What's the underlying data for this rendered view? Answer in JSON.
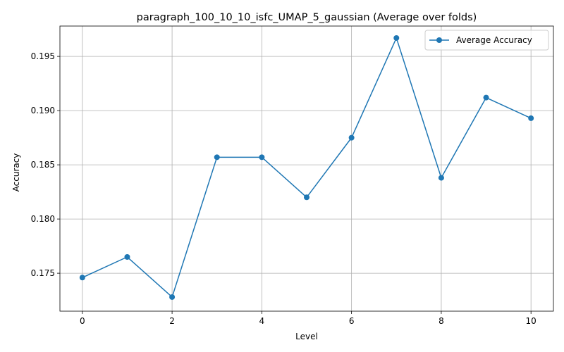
{
  "chart_data": {
    "type": "line",
    "title": "paragraph_100_10_10_isfc_UMAP_5_gaussian (Average over folds)",
    "xlabel": "Level",
    "ylabel": "Accuracy",
    "x": [
      0,
      1,
      2,
      3,
      4,
      5,
      6,
      7,
      8,
      9,
      10
    ],
    "xlim": [
      -0.5,
      10.5
    ],
    "ylim": [
      0.1715,
      0.1978
    ],
    "xticks": [
      0,
      2,
      4,
      6,
      8,
      10
    ],
    "xtick_labels": [
      "0",
      "2",
      "4",
      "6",
      "8",
      "10"
    ],
    "yticks": [
      0.175,
      0.18,
      0.185,
      0.19,
      0.195
    ],
    "ytick_labels": [
      "0.175",
      "0.180",
      "0.185",
      "0.190",
      "0.195"
    ],
    "grid": true,
    "legend_position": "top-right",
    "series": [
      {
        "name": "Average Accuracy",
        "color": "#1f77b4",
        "marker": "circle",
        "values": [
          0.1746,
          0.1765,
          0.1728,
          0.1857,
          0.1857,
          0.182,
          0.1875,
          0.1967,
          0.1838,
          0.1912,
          0.1893
        ]
      }
    ]
  }
}
